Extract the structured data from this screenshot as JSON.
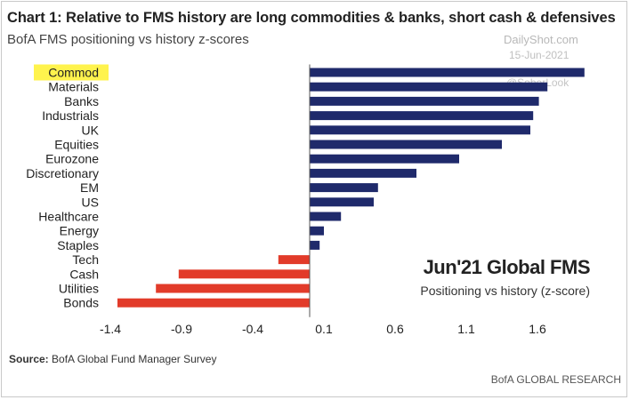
{
  "header": {
    "title": "Chart 1: Relative to FMS history are long commodities & banks, short cash & defensives",
    "subtitle": "BofA FMS positioning vs history z-scores"
  },
  "watermark": {
    "site": "DailyShot.com",
    "date": "15-Jun-2021",
    "handle": "@SoberLook"
  },
  "annotation": {
    "headline": "Jun'21 Global FMS",
    "subline": "Positioning vs history (z-score)"
  },
  "footer": {
    "source_label": "Source:",
    "source_text": "BofA Global Fund Manager Survey",
    "brand": "BofA GLOBAL RESEARCH"
  },
  "chart_data": {
    "type": "bar",
    "orientation": "horizontal",
    "categories": [
      "Commod",
      "Materials",
      "Banks",
      "Industrials",
      "UK",
      "Equities",
      "Eurozone",
      "Discretionary",
      "EM",
      "US",
      "Healthcare",
      "Energy",
      "Staples",
      "Tech",
      "Cash",
      "Utilities",
      "Bonds"
    ],
    "values": [
      1.93,
      1.67,
      1.61,
      1.57,
      1.55,
      1.35,
      1.05,
      0.75,
      0.48,
      0.45,
      0.22,
      0.1,
      0.07,
      -0.22,
      -0.92,
      -1.08,
      -1.35
    ],
    "highlighted_category": "Commod",
    "highlight_color": "#fff34d",
    "positive_color": "#1f2a6b",
    "negative_color": "#e23b2a",
    "xlim": [
      -1.4,
      1.95
    ],
    "xticks": [
      -1.4,
      -0.9,
      -0.4,
      0.1,
      0.6,
      1.1,
      1.6
    ],
    "xtick_labels": [
      "-1.4",
      "-0.9",
      "-0.4",
      "0.1",
      "0.6",
      "1.1",
      "1.6"
    ],
    "grid": false
  }
}
